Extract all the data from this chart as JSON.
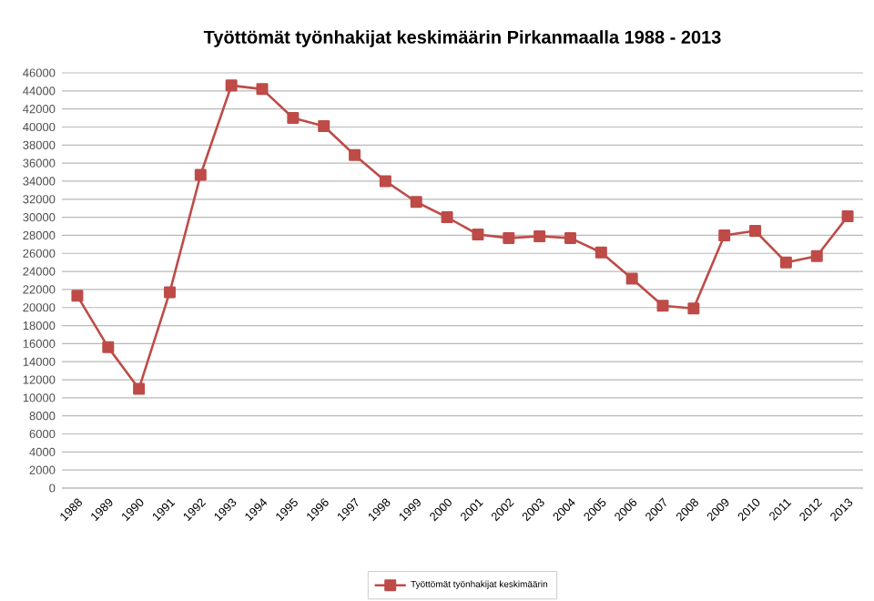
{
  "chart_data": {
    "type": "line",
    "title": "Työttömät työnhakijat keskimäärin Pirkanmaalla 1988 - 2013",
    "categories": [
      "1988",
      "1989",
      "1990",
      "1991",
      "1992",
      "1993",
      "1994",
      "1995",
      "1996",
      "1997",
      "1998",
      "1999",
      "2000",
      "2001",
      "2002",
      "2003",
      "2004",
      "2005",
      "2006",
      "2007",
      "2008",
      "2009",
      "2010",
      "2011",
      "2012",
      "2013"
    ],
    "series": [
      {
        "name": "Työttömät työnhakijat keskimäärin",
        "color": "#be4b48",
        "values": [
          21300,
          15600,
          11000,
          21700,
          34700,
          44600,
          44200,
          41000,
          40100,
          36900,
          34000,
          31700,
          30000,
          28100,
          27700,
          27900,
          27700,
          26100,
          23200,
          20200,
          19900,
          28000,
          28500,
          25000,
          25700,
          30100
        ]
      }
    ],
    "ylim": [
      0,
      46000
    ],
    "yticks": [
      0,
      2000,
      4000,
      6000,
      8000,
      10000,
      12000,
      14000,
      16000,
      18000,
      20000,
      22000,
      24000,
      26000,
      28000,
      30000,
      32000,
      34000,
      36000,
      38000,
      40000,
      42000,
      44000,
      46000
    ],
    "grid": "y",
    "legend": "bottom",
    "marker": "square",
    "line_style": "solid"
  }
}
